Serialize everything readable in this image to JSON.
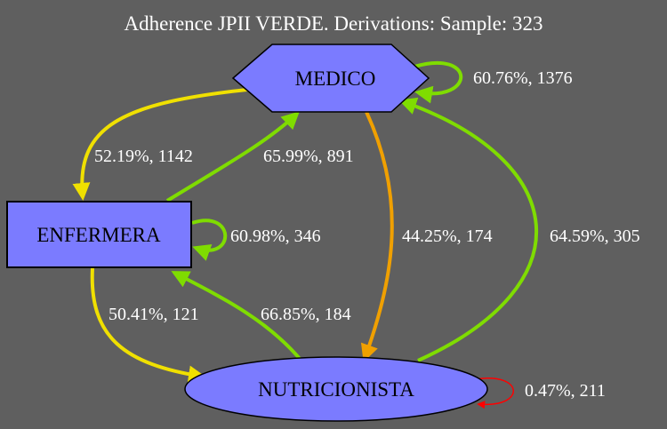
{
  "title": "Adherence JPII VERDE. Derivations: Sample: 323",
  "nodes": {
    "medico": {
      "label": "MEDICO",
      "shape": "hexagon",
      "fill": "#7b7bff"
    },
    "enfermera": {
      "label": "ENFERMERA",
      "shape": "rectangle",
      "fill": "#7b7bff"
    },
    "nutricionista": {
      "label": "NUTRICIONISTA",
      "shape": "ellipse",
      "fill": "#7b7bff"
    }
  },
  "edges": [
    {
      "id": "medico-self",
      "from": "MEDICO",
      "to": "MEDICO",
      "label": "60.76%, 1376",
      "color": "#7fdc00"
    },
    {
      "id": "medico-enfermera",
      "from": "MEDICO",
      "to": "ENFERMERA",
      "label": "52.19%, 1142",
      "color": "#f0e000"
    },
    {
      "id": "enfermera-medico",
      "from": "ENFERMERA",
      "to": "MEDICO",
      "label": "65.99%, 891",
      "color": "#7fdc00"
    },
    {
      "id": "enfermera-self",
      "from": "ENFERMERA",
      "to": "ENFERMERA",
      "label": "60.98%, 346",
      "color": "#7fdc00"
    },
    {
      "id": "medico-nutricionista",
      "from": "MEDICO",
      "to": "NUTRICIONISTA",
      "label": "44.25%, 174",
      "color": "#f0a000"
    },
    {
      "id": "nutricionista-medico",
      "from": "NUTRICIONISTA",
      "to": "MEDICO",
      "label": "64.59%, 305",
      "color": "#7fdc00"
    },
    {
      "id": "enfermera-nutricionista",
      "from": "ENFERMERA",
      "to": "NUTRICIONISTA",
      "label": "50.41%, 121",
      "color": "#f0e000"
    },
    {
      "id": "nutricionista-enfermera",
      "from": "NUTRICIONISTA",
      "to": "ENFERMERA",
      "label": "66.85%, 184",
      "color": "#7fdc00"
    },
    {
      "id": "nutricionista-self",
      "from": "NUTRICIONISTA",
      "to": "NUTRICIONISTA",
      "label": "0.47%, 211",
      "color": "#ff0000"
    }
  ]
}
